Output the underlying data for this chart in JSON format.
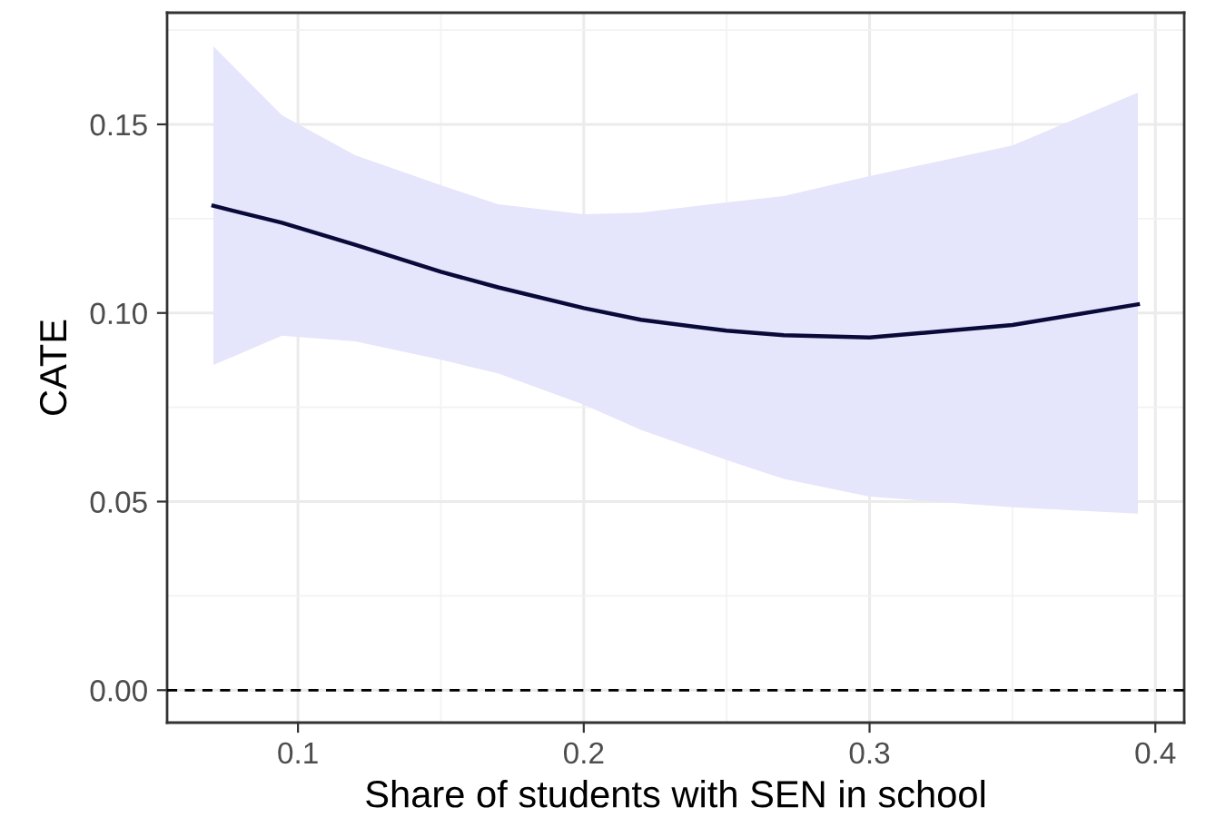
{
  "chart_data": {
    "type": "line",
    "xlabel": "Share of students with SEN in school",
    "ylabel": "CATE",
    "x": [
      0.0704,
      0.0944,
      0.12,
      0.15,
      0.17,
      0.2,
      0.22,
      0.25,
      0.27,
      0.3,
      0.35,
      0.3939
    ],
    "series": [
      {
        "color": "#0a0a3a",
        "values": [
          0.1284,
          0.1239,
          0.1181,
          0.1109,
          0.1068,
          0.1013,
          0.0982,
          0.0953,
          0.0941,
          0.0935,
          0.0968,
          0.1023
        ],
        "upper": [
          0.1707,
          0.1524,
          0.1418,
          0.1339,
          0.1288,
          0.1262,
          0.1266,
          0.1293,
          0.131,
          0.1363,
          0.1444,
          0.1584
        ],
        "lower": [
          0.0862,
          0.094,
          0.0925,
          0.0876,
          0.084,
          0.0757,
          0.069,
          0.061,
          0.056,
          0.0513,
          0.0485,
          0.0468
        ]
      }
    ],
    "xlim": [
      0.0542,
      0.4101
    ],
    "ylim": [
      -0.0086,
      0.1796
    ],
    "xticks": [
      0.1,
      0.2,
      0.3,
      0.4
    ],
    "yticks": [
      {
        "value": 0,
        "label": "0.00"
      },
      {
        "value": 0.05,
        "label": "0.05"
      },
      {
        "value": 0.1,
        "label": "0.10"
      },
      {
        "value": 0.15,
        "label": "0.15"
      }
    ],
    "ref_lines": [
      {
        "axis": "y",
        "value": 0,
        "color": "#000000",
        "line_style": "dashed"
      }
    ],
    "grid": true,
    "line_style": "solid",
    "marker": "none"
  }
}
